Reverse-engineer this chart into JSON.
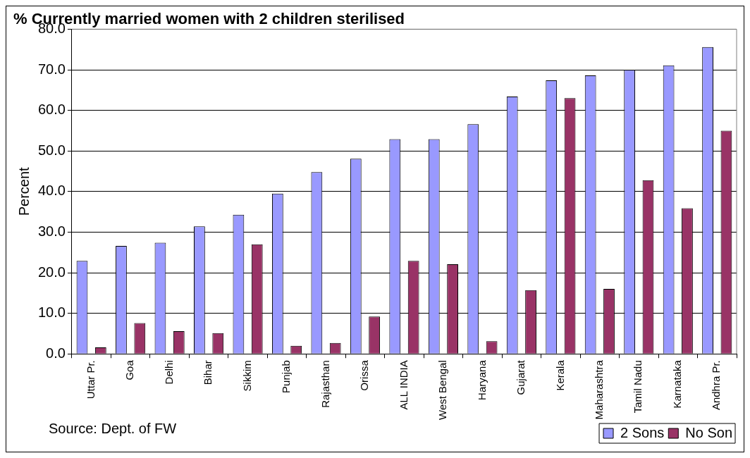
{
  "chart_data": {
    "type": "bar",
    "title": "% Currently married women with 2 children sterilised",
    "ylabel": "Percent",
    "categories": [
      "Uttar Pr.",
      "Goa",
      "Delhi",
      "Bihar",
      "Sikkim",
      "Punjab",
      "Rajasthan",
      "Orissa",
      "ALL INDIA",
      "West Bengal",
      "Haryana",
      "Gujarat",
      "Kerala",
      "Maharashtra",
      "Tamil Nadu",
      "Karnataka",
      "Andhra Pr."
    ],
    "series": [
      {
        "name": "2 Sons",
        "color": "#9999ff",
        "values": [
          22.9,
          26.6,
          27.4,
          31.4,
          34.3,
          39.5,
          44.8,
          48.1,
          52.9,
          52.9,
          56.6,
          63.4,
          67.4,
          68.6,
          70.0,
          71.1,
          75.6
        ]
      },
      {
        "name": "No Son",
        "color": "#993366",
        "values": [
          1.6,
          7.6,
          5.6,
          5.1,
          27.0,
          2.0,
          2.7,
          9.2,
          22.9,
          22.1,
          3.1,
          15.7,
          63.0,
          16.0,
          42.8,
          35.9,
          55.0
        ]
      }
    ],
    "ylim": [
      0,
      80
    ],
    "yticks": [
      {
        "value": 0,
        "label": "0.0"
      },
      {
        "value": 10,
        "label": "10.0"
      },
      {
        "value": 20,
        "label": "20.0"
      },
      {
        "value": 30,
        "label": "30.0"
      },
      {
        "value": 40,
        "label": "40.0"
      },
      {
        "value": 50,
        "label": "50.0"
      },
      {
        "value": 60,
        "label": "60.0"
      },
      {
        "value": 70,
        "label": "70.0"
      },
      {
        "value": 80,
        "label": "80.0"
      }
    ],
    "grid": "y",
    "legend": "bottom right",
    "annotations": [
      "Source: Dept. of FW"
    ]
  }
}
